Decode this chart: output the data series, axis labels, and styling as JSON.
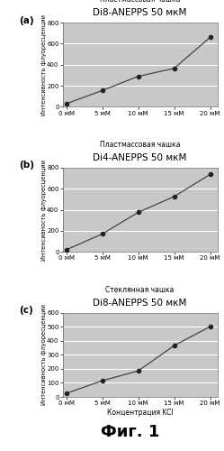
{
  "panels": [
    {
      "label": "(a)",
      "title_line1": "Пластмассовая чашка",
      "title_line2": "Di8-ANEPPS 50 мкМ",
      "x": [
        0,
        5,
        10,
        15,
        20
      ],
      "y": [
        30,
        155,
        290,
        365,
        660
      ],
      "ylim": [
        0,
        800
      ],
      "yticks": [
        0,
        200,
        400,
        600,
        800
      ]
    },
    {
      "label": "(b)",
      "title_line1": "Пластмассовая чашка",
      "title_line2": "Di4-ANEPPS 50 мкМ",
      "x": [
        0,
        5,
        10,
        15,
        20
      ],
      "y": [
        20,
        170,
        375,
        525,
        735
      ],
      "ylim": [
        0,
        800
      ],
      "yticks": [
        0,
        200,
        400,
        600,
        800
      ]
    },
    {
      "label": "(c)",
      "title_line1": "Стеклянная чашка",
      "title_line2": "Di8-ANEPPS 50 мкМ",
      "x": [
        0,
        5,
        10,
        15,
        20
      ],
      "y": [
        25,
        115,
        185,
        365,
        500
      ],
      "ylim": [
        0,
        600
      ],
      "yticks": [
        0,
        100,
        200,
        300,
        400,
        500,
        600
      ]
    }
  ],
  "xlabel": "Концентрация KCl",
  "ylabel": "Интенсивность флуоресценции",
  "xtick_labels": [
    "0 мМ",
    "5 мМ",
    "10 мМ",
    "15 мМ",
    "20 мМ"
  ],
  "xtick_values": [
    0,
    5,
    10,
    15,
    20
  ],
  "plot_bg_color": "#c8c8c8",
  "fig_bg": "#ffffff",
  "line_color": "#444444",
  "marker_color": "#222222",
  "grid_color": "#ffffff",
  "bottom_label": "Фиг. 1"
}
